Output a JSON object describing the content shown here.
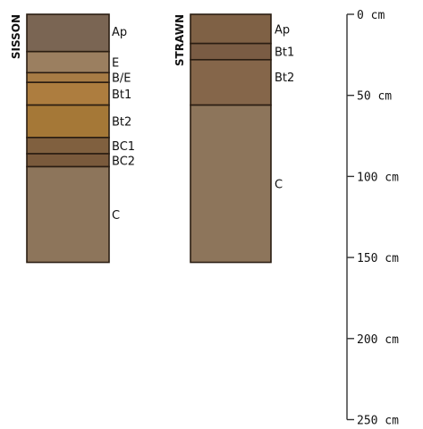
{
  "profiles": [
    {
      "name": "SISSON",
      "horizons": [
        {
          "label": "Ap",
          "top_cm": 0,
          "bottom_cm": 23,
          "color": "#7a6553"
        },
        {
          "label": "E",
          "top_cm": 23,
          "bottom_cm": 36,
          "color": "#9b7f60"
        },
        {
          "label": "B/E",
          "top_cm": 36,
          "bottom_cm": 42,
          "color": "#a77c45"
        },
        {
          "label": "Bt1",
          "top_cm": 42,
          "bottom_cm": 56,
          "color": "#ad7d3f"
        },
        {
          "label": "Bt2",
          "top_cm": 56,
          "bottom_cm": 76,
          "color": "#a57837"
        },
        {
          "label": "BC1",
          "top_cm": 76,
          "bottom_cm": 86,
          "color": "#80603f"
        },
        {
          "label": "BC2",
          "top_cm": 86,
          "bottom_cm": 94,
          "color": "#7a5a3c"
        },
        {
          "label": "C",
          "top_cm": 94,
          "bottom_cm": 153,
          "color": "#8d755b"
        }
      ]
    },
    {
      "name": "STRAWN",
      "horizons": [
        {
          "label": "Ap",
          "top_cm": 0,
          "bottom_cm": 18,
          "color": "#7f6145"
        },
        {
          "label": "Bt1",
          "top_cm": 18,
          "bottom_cm": 28,
          "color": "#7a5c44"
        },
        {
          "label": "Bt2",
          "top_cm": 28,
          "bottom_cm": 56,
          "color": "#85664a"
        },
        {
          "label": "C",
          "top_cm": 56,
          "bottom_cm": 153,
          "color": "#8d755b"
        }
      ]
    }
  ],
  "depth_scale": {
    "unit": "cm",
    "ticks": [
      0,
      50,
      100,
      150,
      200,
      250
    ],
    "tick_labels": [
      "0 cm",
      "50 cm",
      "100 cm",
      "150 cm",
      "200 cm",
      "250 cm"
    ]
  }
}
